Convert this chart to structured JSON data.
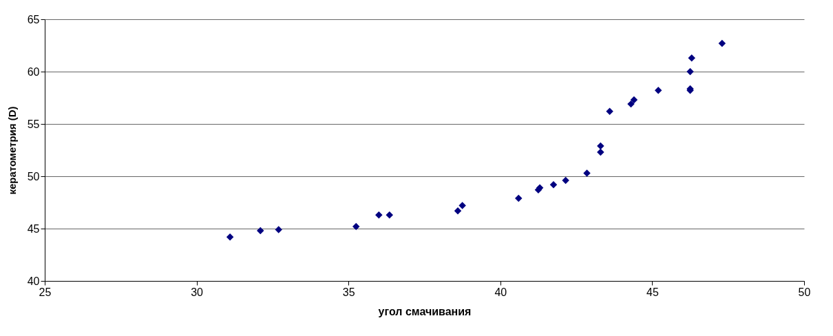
{
  "chart_data": {
    "type": "scatter",
    "xlabel": "угол смачивания",
    "ylabel": "кератометрия (D)",
    "x": [
      31.1,
      32.1,
      32.7,
      35.25,
      36.0,
      36.35,
      38.6,
      38.75,
      40.6,
      41.25,
      41.3,
      41.75,
      42.15,
      42.85,
      43.3,
      43.3,
      43.6,
      44.3,
      44.4,
      45.2,
      46.25,
      46.25,
      46.25,
      46.3,
      47.3
    ],
    "series": [
      {
        "color": "#000080",
        "values": [
          44.2,
          44.8,
          44.9,
          45.2,
          46.3,
          46.3,
          46.7,
          47.2,
          47.9,
          48.7,
          48.9,
          49.2,
          49.6,
          50.3,
          52.3,
          52.9,
          56.2,
          56.9,
          57.3,
          58.2,
          58.2,
          58.35,
          60.0,
          61.3,
          62.7
        ]
      }
    ],
    "xlim": [
      25,
      50
    ],
    "xticks": [
      25,
      30,
      35,
      40,
      45,
      50
    ],
    "ylim": [
      40,
      65
    ],
    "yticks": [
      40,
      45,
      50,
      55,
      60,
      65
    ],
    "grid": "y",
    "marker": "diamond"
  }
}
